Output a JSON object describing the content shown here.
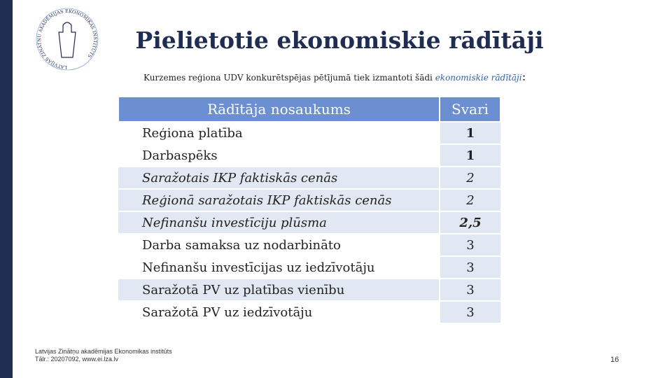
{
  "header": {
    "title": "Pielietotie ekonomiskie rādītāji",
    "subtitle_lead": "Kurzemes reģiona UDV konkurētspējas pētījumā tiek izmantoti šādi",
    "subtitle_emphasis": "ekonomiskie rādītāji",
    "subtitle_end": ":"
  },
  "logo": {
    "text": "LATVIJAS ZINĀTŅU AKADĒMIJAS EKONOMIKAS INSTITŪTS"
  },
  "table": {
    "columns": [
      "Rādītāja nosaukums",
      "Svari"
    ],
    "rows": [
      [
        "Reģiona platība",
        "1"
      ],
      [
        "Darbaspēks",
        "1"
      ],
      [
        "Saražotais IKP faktiskās cenās",
        "2"
      ],
      [
        "Reģionā saražotais IKP faktiskās cenās",
        "2"
      ],
      [
        "Nefinanšu investīciju plūsma",
        "2,5"
      ],
      [
        "Darba samaksa uz nodarbināto",
        "3"
      ],
      [
        "Nefinanšu investīcijas uz iedzīvotāju",
        "3"
      ],
      [
        "Saražotā PV uz platības vienību",
        "3"
      ],
      [
        "Saražotā PV uz iedzīvotāju",
        "3"
      ]
    ]
  },
  "footer": {
    "lines": [
      "Latvijas Zinātņu akadēmijas Ekonomikas institūts",
      "Tālr.: 20207092, www.ei.lza.lv"
    ],
    "page_number": "16"
  }
}
